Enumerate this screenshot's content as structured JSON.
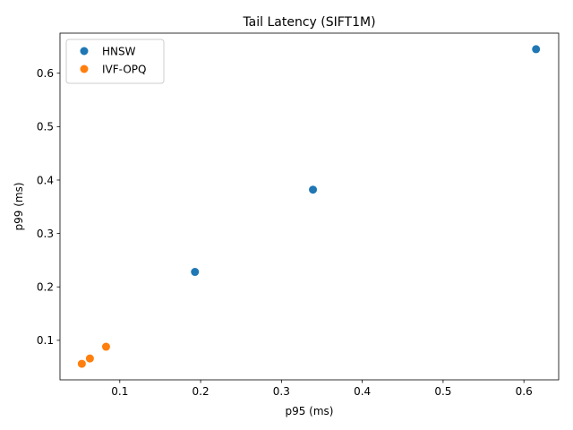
{
  "chart_data": {
    "type": "scatter",
    "title": "Tail Latency (SIFT1M)",
    "xlabel": "p95 (ms)",
    "ylabel": "p99 (ms)",
    "xlim": [
      0.026,
      0.643
    ],
    "ylim": [
      0.026,
      0.675
    ],
    "xticks": [
      0.1,
      0.2,
      0.3,
      0.4,
      0.5,
      0.6
    ],
    "yticks": [
      0.1,
      0.2,
      0.3,
      0.4,
      0.5,
      0.6
    ],
    "grid": false,
    "legend_position": "upper-left",
    "series": [
      {
        "name": "HNSW",
        "color": "#1f77b4",
        "points": [
          {
            "x": 0.193,
            "y": 0.228
          },
          {
            "x": 0.339,
            "y": 0.382
          },
          {
            "x": 0.615,
            "y": 0.645
          }
        ]
      },
      {
        "name": "IVF-OPQ",
        "color": "#ff7f0e",
        "points": [
          {
            "x": 0.053,
            "y": 0.056
          },
          {
            "x": 0.063,
            "y": 0.066
          },
          {
            "x": 0.083,
            "y": 0.088
          }
        ]
      }
    ]
  }
}
